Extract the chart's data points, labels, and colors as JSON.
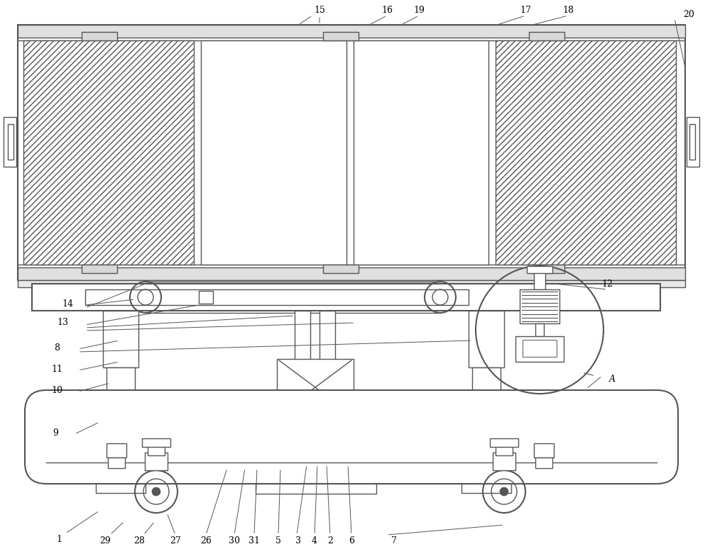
{
  "bg_color": "#ffffff",
  "line_color": "#555555",
  "fig_width": 10.0,
  "fig_height": 7.81,
  "dpi": 100
}
